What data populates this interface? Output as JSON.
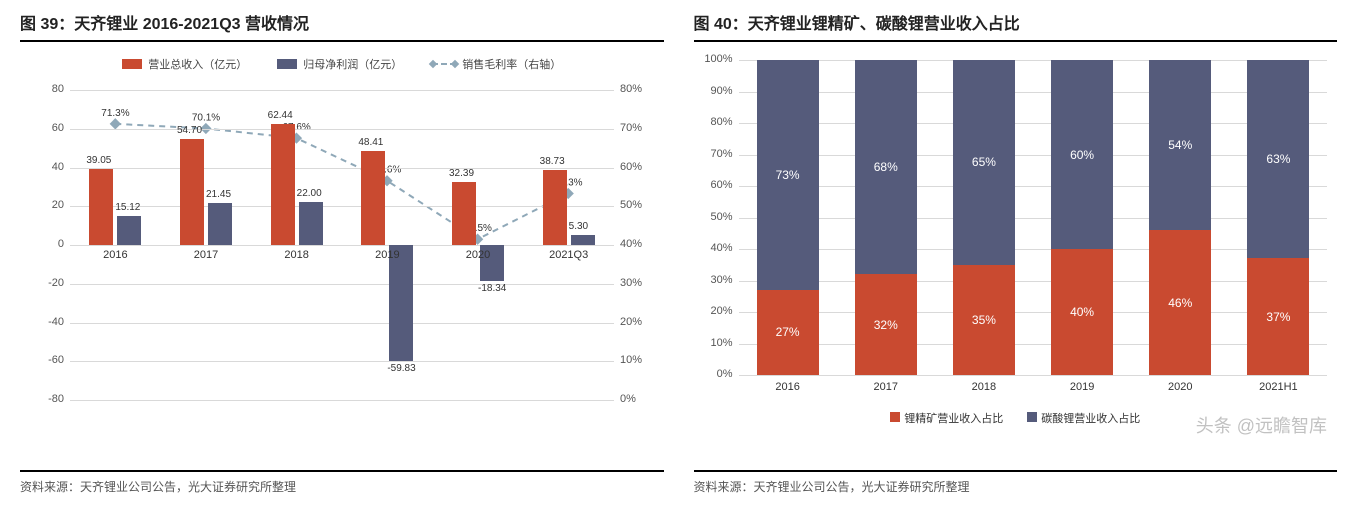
{
  "colors": {
    "bar_revenue": "#c94a30",
    "bar_profit": "#555b7b",
    "line_margin": "#8fa8b8",
    "gridline": "#d9d9d9",
    "text": "#333333",
    "seg1": "#c94a30",
    "seg2": "#555b7b"
  },
  "chart1": {
    "title": "图 39：天齐锂业 2016-2021Q3 营收情况",
    "legend": {
      "revenue": "营业总收入（亿元）",
      "profit": "归母净利润（亿元）",
      "margin": "销售毛利率（右轴）"
    },
    "source": "资料来源：天齐锂业公司公告，光大证券研究所整理",
    "left_axis": {
      "min": -80,
      "max": 80,
      "step": 20
    },
    "right_axis": {
      "min": 0,
      "max": 80,
      "step": 10,
      "suffix": "%"
    },
    "categories": [
      "2016",
      "2017",
      "2018",
      "2019",
      "2020",
      "2021Q3"
    ],
    "revenue": [
      39.05,
      54.7,
      62.44,
      48.41,
      32.39,
      38.73
    ],
    "profit": [
      15.12,
      21.45,
      22.0,
      -59.83,
      -18.34,
      5.3
    ],
    "margin_pct": [
      71.3,
      70.1,
      67.6,
      56.6,
      41.5,
      53.3
    ]
  },
  "chart2": {
    "title": "图 40：天齐锂业锂精矿、碳酸锂营业收入占比",
    "source": "资料来源：天齐锂业公司公告，光大证券研究所整理",
    "y_axis": {
      "min": 0,
      "max": 100,
      "step": 10,
      "suffix": "%"
    },
    "categories": [
      "2016",
      "2017",
      "2018",
      "2019",
      "2020",
      "2021H1"
    ],
    "seg1_label": "锂精矿营业收入占比",
    "seg2_label": "碳酸锂营业收入占比",
    "seg1_pct": [
      27,
      32,
      35,
      40,
      46,
      37
    ],
    "seg2_pct": [
      73,
      68,
      65,
      60,
      54,
      63
    ]
  },
  "watermark": "头条 @远瞻智库"
}
